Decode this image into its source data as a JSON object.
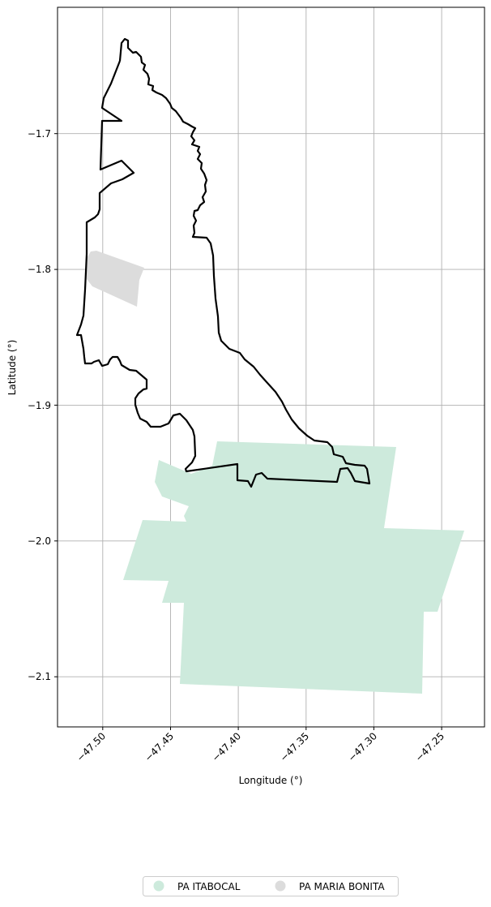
{
  "map": {
    "xlabel": "Longitude (°)",
    "ylabel": "Latitude (°)",
    "xlim": [
      -47.527,
      -47.212
    ],
    "ylim": [
      -2.137,
      -1.607
    ],
    "grid": true,
    "x_ticks": [
      {
        "value": -47.5,
        "label": "−47.50"
      },
      {
        "value": -47.45,
        "label": "−47.45"
      },
      {
        "value": -47.4,
        "label": "−47.40"
      },
      {
        "value": -47.35,
        "label": "−47.35"
      },
      {
        "value": -47.3,
        "label": "−47.30"
      },
      {
        "value": -47.25,
        "label": "−47.25"
      }
    ],
    "y_ticks": [
      {
        "value": -1.7,
        "label": "−1.7"
      },
      {
        "value": -1.8,
        "label": "−1.8"
      },
      {
        "value": -1.9,
        "label": "−1.9"
      },
      {
        "value": -2.0,
        "label": "−2.0"
      },
      {
        "value": -2.1,
        "label": "−2.1"
      }
    ],
    "colors": {
      "itabocal": "#cdeadc",
      "maria_bonita": "#dcdcdc",
      "boundary": "#000000",
      "grid": "#b0b0b0"
    }
  },
  "legend": {
    "placement": "bottom-center",
    "items": [
      {
        "key": "itabocal",
        "label": "PA ITABOCAL"
      },
      {
        "key": "maria_bonita",
        "label": "PA MARIA BONITA"
      }
    ]
  }
}
